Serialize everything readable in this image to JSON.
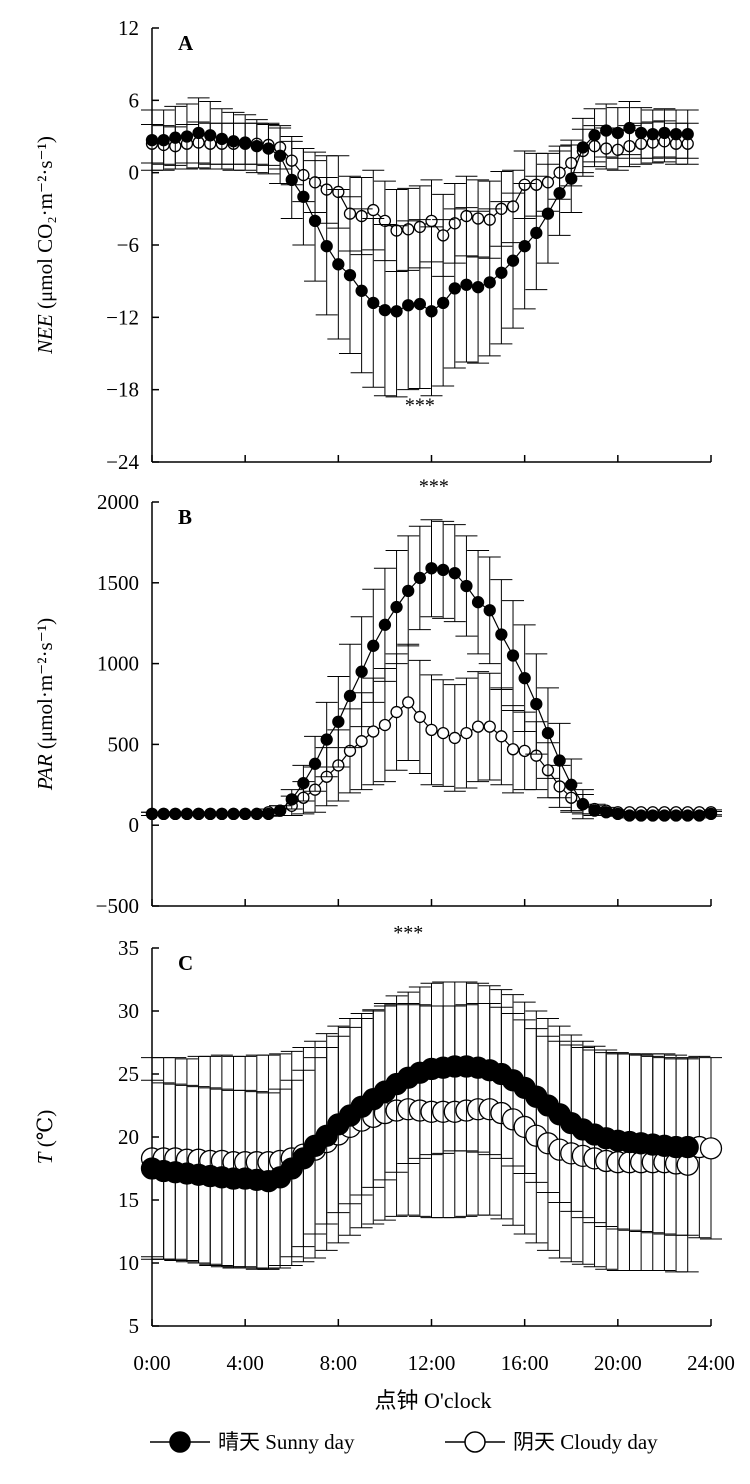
{
  "figure": {
    "xlabel": "点钟  O'clock",
    "x_ticks": [
      "0:00",
      "4:00",
      "8:00",
      "12:00",
      "16:00",
      "20:00",
      "24:00"
    ],
    "legend": [
      {
        "label": "晴天  Sunny day",
        "marker": "filled-circle",
        "color": "#000000"
      },
      {
        "label": "阴天  Cloudy day",
        "marker": "open-circle",
        "color": "#000000"
      }
    ]
  },
  "chart_data": [
    {
      "type": "line",
      "panel": "A",
      "ylabel_var": "NEE",
      "ylabel_unit": "(μmol CO₂·m⁻²·s⁻¹)",
      "ylim": [
        -24,
        12
      ],
      "yticks": [
        12,
        6,
        0,
        -6,
        -12,
        -18,
        -24
      ],
      "ytick_labels": [
        "12",
        "6",
        "0",
        "−6",
        "−12",
        "−18",
        "−24"
      ],
      "xlim": [
        0,
        24
      ],
      "annotation": "***",
      "annotation_x": 11.5,
      "annotation_y": -19.8,
      "series": [
        {
          "name": "晴天  Sunny day",
          "style": "filled",
          "x": [
            0,
            0.5,
            1,
            1.5,
            2,
            2.5,
            3,
            3.5,
            4,
            4.5,
            5,
            5.5,
            6,
            6.5,
            7,
            7.5,
            8,
            8.5,
            9,
            9.5,
            10,
            10.5,
            11,
            11.5,
            12,
            12.5,
            13,
            13.5,
            14,
            14.5,
            15,
            15.5,
            16,
            16.5,
            17,
            17.5,
            18,
            18.5,
            19,
            19.5,
            20,
            20.5,
            21,
            21.5,
            22,
            22.5,
            23
          ],
          "y": [
            2.7,
            2.7,
            2.9,
            3.0,
            3.3,
            3.1,
            2.8,
            2.6,
            2.5,
            2.2,
            2.0,
            1.4,
            -0.6,
            -2.0,
            -4.0,
            -6.1,
            -7.6,
            -8.5,
            -9.8,
            -10.8,
            -11.4,
            -11.5,
            -11.0,
            -10.9,
            -11.5,
            -10.8,
            -9.6,
            -9.3,
            -9.5,
            -9.1,
            -8.3,
            -7.3,
            -6.1,
            -5.0,
            -3.4,
            -1.7,
            -0.5,
            2.1,
            3.1,
            3.5,
            3.3,
            3.7,
            3.3,
            3.2,
            3.3,
            3.2,
            3.2
          ],
          "err": [
            2.5,
            2.5,
            2.6,
            2.7,
            2.9,
            2.8,
            2.5,
            2.4,
            2.3,
            2.2,
            2.1,
            2.3,
            3.2,
            4.0,
            5.0,
            5.7,
            6.2,
            6.5,
            6.8,
            7.0,
            7.1,
            7.1,
            7.0,
            7.0,
            7.0,
            6.9,
            6.6,
            6.4,
            6.3,
            6.1,
            5.9,
            5.6,
            5.2,
            4.7,
            4.1,
            3.5,
            2.8,
            2.4,
            2.2,
            2.2,
            2.1,
            2.2,
            2.1,
            2.0,
            2.0,
            2.0,
            2.0
          ]
        },
        {
          "name": "阴天  Cloudy day",
          "style": "open",
          "x": [
            0,
            0.5,
            1,
            1.5,
            2,
            2.5,
            3,
            3.5,
            4,
            4.5,
            5,
            5.5,
            6,
            6.5,
            7,
            7.5,
            8,
            8.5,
            9,
            9.5,
            10,
            10.5,
            11,
            11.5,
            12,
            12.5,
            13,
            13.5,
            14,
            14.5,
            15,
            15.5,
            16,
            16.5,
            17,
            17.5,
            18,
            18.5,
            19,
            19.5,
            20,
            20.5,
            21,
            21.5,
            22,
            22.5,
            23
          ],
          "y": [
            2.4,
            2.3,
            2.2,
            2.4,
            2.5,
            2.4,
            2.4,
            2.4,
            2.4,
            2.4,
            2.3,
            2.1,
            1.0,
            -0.2,
            -0.8,
            -1.4,
            -1.6,
            -3.4,
            -3.6,
            -3.1,
            -4.0,
            -4.8,
            -4.7,
            -4.5,
            -4.0,
            -5.2,
            -4.2,
            -3.6,
            -3.8,
            -3.9,
            -3.0,
            -2.8,
            -1.0,
            -1.0,
            -0.8,
            0.0,
            0.8,
            1.8,
            2.2,
            2.0,
            1.9,
            2.2,
            2.4,
            2.5,
            2.6,
            2.4,
            2.4
          ],
          "err": [
            1.6,
            1.6,
            1.6,
            1.6,
            1.7,
            1.7,
            1.7,
            1.7,
            1.7,
            1.7,
            1.7,
            1.8,
            2.0,
            2.2,
            2.5,
            2.8,
            3.0,
            3.1,
            3.2,
            3.3,
            3.3,
            3.4,
            3.4,
            3.4,
            3.4,
            3.4,
            3.3,
            3.3,
            3.2,
            3.2,
            3.1,
            3.0,
            2.8,
            2.6,
            2.4,
            2.2,
            1.9,
            1.8,
            1.7,
            1.7,
            1.7,
            1.7,
            1.7,
            1.7,
            1.7,
            1.7,
            1.7
          ]
        }
      ]
    },
    {
      "type": "line",
      "panel": "B",
      "ylabel_var": "PAR",
      "ylabel_unit": "(μmol·m⁻²·s⁻¹)",
      "ylim": [
        -500,
        2000
      ],
      "yticks": [
        2000,
        1500,
        1000,
        500,
        0,
        -500
      ],
      "ytick_labels": [
        "2000",
        "1500",
        "1000",
        "500",
        "0",
        "−500"
      ],
      "xlim": [
        0,
        24
      ],
      "annotation": "***",
      "annotation_x": 12.1,
      "annotation_y": 2060,
      "series": [
        {
          "name": "晴天  Sunny day",
          "style": "filled",
          "x": [
            0,
            0.5,
            1,
            1.5,
            2,
            2.5,
            3,
            3.5,
            4,
            4.5,
            5,
            5.5,
            6,
            6.5,
            7,
            7.5,
            8,
            8.5,
            9,
            9.5,
            10,
            10.5,
            11,
            11.5,
            12,
            12.5,
            13,
            13.5,
            14,
            14.5,
            15,
            15.5,
            16,
            16.5,
            17,
            17.5,
            18,
            18.5,
            19,
            19.5,
            20,
            20.5,
            21,
            21.5,
            22,
            22.5,
            23,
            23.5,
            24
          ],
          "y": [
            70,
            70,
            70,
            70,
            70,
            70,
            70,
            70,
            70,
            70,
            70,
            90,
            160,
            260,
            380,
            530,
            640,
            800,
            950,
            1110,
            1240,
            1350,
            1450,
            1530,
            1590,
            1580,
            1560,
            1480,
            1380,
            1330,
            1180,
            1050,
            910,
            750,
            570,
            400,
            250,
            130,
            90,
            80,
            70,
            60,
            60,
            60,
            60,
            60,
            60,
            60,
            70
          ],
          "err": [
            10,
            10,
            10,
            10,
            10,
            10,
            10,
            10,
            10,
            10,
            15,
            30,
            60,
            110,
            170,
            230,
            280,
            320,
            340,
            350,
            350,
            350,
            340,
            320,
            300,
            300,
            300,
            310,
            320,
            330,
            340,
            340,
            330,
            310,
            280,
            230,
            160,
            90,
            30,
            20,
            15,
            15,
            15,
            15,
            15,
            15,
            15,
            15,
            15
          ]
        },
        {
          "name": "阴天  Cloudy day",
          "style": "open",
          "x": [
            0,
            0.5,
            1,
            1.5,
            2,
            2.5,
            3,
            3.5,
            4,
            4.5,
            5,
            5.5,
            6,
            6.5,
            7,
            7.5,
            8,
            8.5,
            9,
            9.5,
            10,
            10.5,
            11,
            11.5,
            12,
            12.5,
            13,
            13.5,
            14,
            14.5,
            15,
            15.5,
            16,
            16.5,
            17,
            17.5,
            18,
            18.5,
            19,
            19.5,
            20,
            20.5,
            21,
            21.5,
            22,
            22.5,
            23,
            23.5,
            24
          ],
          "y": [
            70,
            70,
            70,
            70,
            70,
            70,
            70,
            70,
            70,
            70,
            80,
            90,
            120,
            170,
            220,
            300,
            370,
            460,
            520,
            580,
            620,
            700,
            760,
            670,
            590,
            570,
            540,
            570,
            610,
            610,
            550,
            470,
            460,
            430,
            340,
            240,
            170,
            130,
            100,
            90,
            80,
            80,
            80,
            80,
            80,
            80,
            80,
            80,
            80
          ],
          "err": [
            10,
            10,
            10,
            10,
            10,
            10,
            10,
            10,
            10,
            10,
            20,
            30,
            60,
            100,
            140,
            180,
            220,
            260,
            300,
            330,
            350,
            360,
            360,
            350,
            340,
            330,
            330,
            340,
            340,
            330,
            300,
            270,
            240,
            210,
            170,
            130,
            90,
            60,
            30,
            20,
            15,
            15,
            15,
            15,
            15,
            15,
            15,
            15,
            15
          ]
        }
      ]
    },
    {
      "type": "line",
      "panel": "C",
      "ylabel_var": "T",
      "ylabel_unit": "(℃)",
      "ylim": [
        5,
        35
      ],
      "yticks": [
        35,
        30,
        25,
        20,
        15,
        10,
        5
      ],
      "ytick_labels": [
        "35",
        "30",
        "25",
        "20",
        "15",
        "10",
        "5"
      ],
      "xlim": [
        0,
        24
      ],
      "annotation": "***",
      "annotation_x": 11.0,
      "annotation_y": 35.7,
      "series": [
        {
          "name": "晴天  Sunny day",
          "style": "filled",
          "x": [
            0,
            0.5,
            1,
            1.5,
            2,
            2.5,
            3,
            3.5,
            4,
            4.5,
            5,
            5.5,
            6,
            6.5,
            7,
            7.5,
            8,
            8.5,
            9,
            9.5,
            10,
            10.5,
            11,
            11.5,
            12,
            12.5,
            13,
            13.5,
            14,
            14.5,
            15,
            15.5,
            16,
            16.5,
            17,
            17.5,
            18,
            18.5,
            19,
            19.5,
            20,
            20.5,
            21,
            21.5,
            22,
            22.5,
            23
          ],
          "y": [
            17.5,
            17.3,
            17.2,
            17.1,
            17.0,
            16.9,
            16.8,
            16.7,
            16.7,
            16.6,
            16.5,
            16.8,
            17.5,
            18.3,
            19.3,
            20.1,
            21.0,
            21.7,
            22.4,
            23.0,
            23.6,
            24.2,
            24.7,
            25.1,
            25.4,
            25.5,
            25.6,
            25.6,
            25.5,
            25.3,
            25.0,
            24.5,
            23.9,
            23.2,
            22.5,
            21.8,
            21.1,
            20.6,
            20.2,
            19.9,
            19.7,
            19.6,
            19.5,
            19.4,
            19.3,
            19.2,
            19.2
          ],
          "err": [
            7.0,
            7.0,
            7.0,
            7.0,
            7.0,
            7.0,
            7.0,
            7.0,
            7.0,
            7.0,
            7.0,
            7.0,
            7.0,
            7.0,
            7.0,
            7.0,
            7.0,
            7.0,
            7.0,
            7.0,
            7.0,
            7.0,
            6.8,
            6.8,
            6.8,
            6.8,
            6.7,
            6.7,
            6.7,
            6.7,
            6.7,
            6.8,
            6.8,
            6.8,
            6.9,
            7.0,
            7.0,
            7.0,
            7.0,
            7.0,
            7.0,
            7.0,
            7.0,
            7.0,
            7.0,
            7.0,
            7.0
          ]
        },
        {
          "name": "阴天  Cloudy day",
          "style": "open",
          "x": [
            0,
            0.5,
            1,
            1.5,
            2,
            2.5,
            3,
            3.5,
            4,
            4.5,
            5,
            5.5,
            6,
            6.5,
            7,
            7.5,
            8,
            8.5,
            9,
            9.5,
            10,
            10.5,
            11,
            11.5,
            12,
            12.5,
            13,
            13.5,
            14,
            14.5,
            15,
            15.5,
            16,
            16.5,
            17,
            17.5,
            18,
            18.5,
            19,
            19.5,
            20,
            20.5,
            21,
            21.5,
            22,
            22.5,
            23,
            23.5,
            24
          ],
          "y": [
            18.3,
            18.3,
            18.3,
            18.2,
            18.2,
            18.1,
            18.1,
            18.0,
            18.0,
            18.0,
            18.0,
            18.1,
            18.3,
            18.6,
            19.0,
            19.6,
            20.2,
            20.8,
            21.3,
            21.6,
            21.9,
            22.1,
            22.2,
            22.1,
            22.0,
            22.0,
            22.0,
            22.1,
            22.2,
            22.2,
            21.9,
            21.4,
            20.8,
            20.1,
            19.5,
            19.0,
            18.7,
            18.5,
            18.3,
            18.1,
            18.0,
            18.0,
            18.0,
            18.0,
            18.0,
            17.9,
            17.8,
            19.2,
            19.1
          ],
          "err": [
            8.0,
            8.0,
            8.0,
            8.0,
            8.2,
            8.3,
            8.4,
            8.4,
            8.4,
            8.5,
            8.5,
            8.5,
            8.5,
            8.5,
            8.6,
            8.6,
            8.6,
            8.6,
            8.5,
            8.5,
            8.5,
            8.4,
            8.4,
            8.4,
            8.4,
            8.4,
            8.4,
            8.4,
            8.4,
            8.4,
            8.4,
            8.4,
            8.5,
            8.5,
            8.5,
            8.6,
            8.6,
            8.6,
            8.6,
            8.6,
            8.6,
            8.6,
            8.6,
            8.6,
            8.6,
            8.6,
            8.5,
            7.2,
            7.2
          ]
        }
      ]
    }
  ]
}
